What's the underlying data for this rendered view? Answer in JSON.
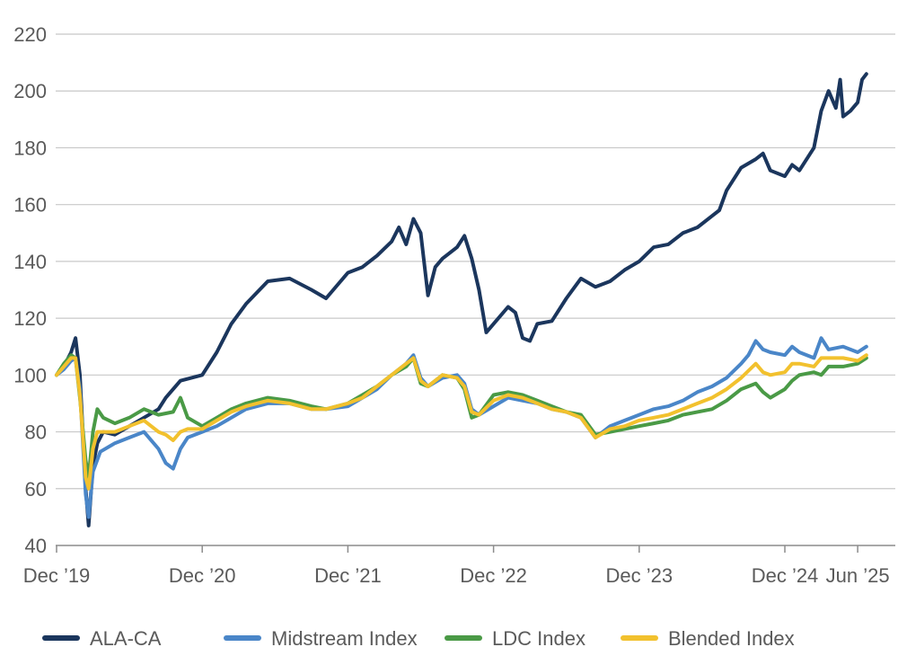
{
  "chart_data": {
    "type": "line",
    "title": "",
    "xlabel": "",
    "ylabel": "",
    "ylim": [
      40,
      220
    ],
    "yticks": [
      40,
      60,
      80,
      100,
      120,
      140,
      160,
      180,
      200,
      220
    ],
    "xticks": [
      {
        "t": 0.0,
        "label": "Dec ’19"
      },
      {
        "t": 1.0,
        "label": "Dec ’20"
      },
      {
        "t": 2.0,
        "label": "Dec ’21"
      },
      {
        "t": 3.0,
        "label": "Dec ’22"
      },
      {
        "t": 4.0,
        "label": "Dec ’23"
      },
      {
        "t": 5.0,
        "label": "Dec ’24"
      },
      {
        "t": 5.5,
        "label": "Jun ’25"
      }
    ],
    "x_unit": "years since Dec 2019",
    "series": [
      {
        "name": "ALA-CA",
        "color": "#1b365d",
        "points": [
          [
            0.0,
            100
          ],
          [
            0.05,
            103
          ],
          [
            0.1,
            108
          ],
          [
            0.13,
            113
          ],
          [
            0.16,
            100
          ],
          [
            0.2,
            60
          ],
          [
            0.22,
            47
          ],
          [
            0.25,
            68
          ],
          [
            0.28,
            76
          ],
          [
            0.32,
            80
          ],
          [
            0.4,
            79
          ],
          [
            0.5,
            82
          ],
          [
            0.6,
            85
          ],
          [
            0.7,
            88
          ],
          [
            0.75,
            92
          ],
          [
            0.8,
            95
          ],
          [
            0.85,
            98
          ],
          [
            1.0,
            100
          ],
          [
            1.1,
            108
          ],
          [
            1.2,
            118
          ],
          [
            1.3,
            125
          ],
          [
            1.45,
            133
          ],
          [
            1.6,
            134
          ],
          [
            1.75,
            130
          ],
          [
            1.85,
            127
          ],
          [
            2.0,
            136
          ],
          [
            2.1,
            138
          ],
          [
            2.2,
            142
          ],
          [
            2.3,
            147
          ],
          [
            2.35,
            152
          ],
          [
            2.4,
            146
          ],
          [
            2.45,
            155
          ],
          [
            2.5,
            150
          ],
          [
            2.55,
            128
          ],
          [
            2.6,
            138
          ],
          [
            2.65,
            141
          ],
          [
            2.75,
            145
          ],
          [
            2.8,
            149
          ],
          [
            2.85,
            141
          ],
          [
            2.9,
            130
          ],
          [
            2.95,
            115
          ],
          [
            3.0,
            118
          ],
          [
            3.1,
            124
          ],
          [
            3.15,
            122
          ],
          [
            3.2,
            113
          ],
          [
            3.25,
            112
          ],
          [
            3.3,
            118
          ],
          [
            3.4,
            119
          ],
          [
            3.5,
            127
          ],
          [
            3.6,
            134
          ],
          [
            3.7,
            131
          ],
          [
            3.8,
            133
          ],
          [
            3.9,
            137
          ],
          [
            4.0,
            140
          ],
          [
            4.1,
            145
          ],
          [
            4.2,
            146
          ],
          [
            4.3,
            150
          ],
          [
            4.4,
            152
          ],
          [
            4.5,
            156
          ],
          [
            4.55,
            158
          ],
          [
            4.6,
            165
          ],
          [
            4.7,
            173
          ],
          [
            4.8,
            176
          ],
          [
            4.85,
            178
          ],
          [
            4.9,
            172
          ],
          [
            5.0,
            170
          ],
          [
            5.05,
            174
          ],
          [
            5.1,
            172
          ],
          [
            5.2,
            180
          ],
          [
            5.25,
            193
          ],
          [
            5.3,
            200
          ],
          [
            5.35,
            194
          ],
          [
            5.38,
            204
          ],
          [
            5.4,
            191
          ],
          [
            5.45,
            193
          ],
          [
            5.5,
            196
          ],
          [
            5.53,
            204
          ],
          [
            5.56,
            206
          ]
        ]
      },
      {
        "name": "Midstream Index",
        "color": "#4a86c8",
        "points": [
          [
            0.0,
            100
          ],
          [
            0.05,
            102
          ],
          [
            0.1,
            105
          ],
          [
            0.13,
            106
          ],
          [
            0.16,
            95
          ],
          [
            0.2,
            58
          ],
          [
            0.22,
            50
          ],
          [
            0.25,
            66
          ],
          [
            0.3,
            73
          ],
          [
            0.4,
            76
          ],
          [
            0.5,
            78
          ],
          [
            0.6,
            80
          ],
          [
            0.7,
            74
          ],
          [
            0.75,
            69
          ],
          [
            0.8,
            67
          ],
          [
            0.85,
            74
          ],
          [
            0.9,
            78
          ],
          [
            1.0,
            80
          ],
          [
            1.1,
            82
          ],
          [
            1.2,
            85
          ],
          [
            1.3,
            88
          ],
          [
            1.45,
            90
          ],
          [
            1.6,
            90
          ],
          [
            1.75,
            88
          ],
          [
            1.85,
            88
          ],
          [
            2.0,
            89
          ],
          [
            2.1,
            92
          ],
          [
            2.2,
            95
          ],
          [
            2.3,
            100
          ],
          [
            2.4,
            104
          ],
          [
            2.45,
            107
          ],
          [
            2.5,
            99
          ],
          [
            2.55,
            96
          ],
          [
            2.65,
            99
          ],
          [
            2.75,
            100
          ],
          [
            2.8,
            97
          ],
          [
            2.85,
            88
          ],
          [
            2.9,
            86
          ],
          [
            3.0,
            89
          ],
          [
            3.1,
            92
          ],
          [
            3.2,
            91
          ],
          [
            3.3,
            90
          ],
          [
            3.4,
            88
          ],
          [
            3.5,
            87
          ],
          [
            3.6,
            85
          ],
          [
            3.7,
            78
          ],
          [
            3.8,
            82
          ],
          [
            3.9,
            84
          ],
          [
            4.0,
            86
          ],
          [
            4.1,
            88
          ],
          [
            4.2,
            89
          ],
          [
            4.3,
            91
          ],
          [
            4.4,
            94
          ],
          [
            4.5,
            96
          ],
          [
            4.6,
            99
          ],
          [
            4.7,
            104
          ],
          [
            4.75,
            107
          ],
          [
            4.8,
            112
          ],
          [
            4.85,
            109
          ],
          [
            4.9,
            108
          ],
          [
            5.0,
            107
          ],
          [
            5.05,
            110
          ],
          [
            5.1,
            108
          ],
          [
            5.2,
            106
          ],
          [
            5.25,
            113
          ],
          [
            5.3,
            109
          ],
          [
            5.4,
            110
          ],
          [
            5.5,
            108
          ],
          [
            5.56,
            110
          ]
        ]
      },
      {
        "name": "LDC Index",
        "color": "#4a9a46",
        "points": [
          [
            0.0,
            100
          ],
          [
            0.05,
            104
          ],
          [
            0.1,
            107
          ],
          [
            0.13,
            106
          ],
          [
            0.16,
            92
          ],
          [
            0.2,
            70
          ],
          [
            0.22,
            64
          ],
          [
            0.25,
            80
          ],
          [
            0.28,
            88
          ],
          [
            0.32,
            85
          ],
          [
            0.4,
            83
          ],
          [
            0.5,
            85
          ],
          [
            0.6,
            88
          ],
          [
            0.7,
            86
          ],
          [
            0.8,
            87
          ],
          [
            0.85,
            92
          ],
          [
            0.9,
            85
          ],
          [
            1.0,
            82
          ],
          [
            1.1,
            85
          ],
          [
            1.2,
            88
          ],
          [
            1.3,
            90
          ],
          [
            1.45,
            92
          ],
          [
            1.6,
            91
          ],
          [
            1.75,
            89
          ],
          [
            1.85,
            88
          ],
          [
            2.0,
            90
          ],
          [
            2.1,
            93
          ],
          [
            2.2,
            96
          ],
          [
            2.3,
            100
          ],
          [
            2.4,
            103
          ],
          [
            2.45,
            106
          ],
          [
            2.5,
            97
          ],
          [
            2.55,
            96
          ],
          [
            2.65,
            100
          ],
          [
            2.75,
            99
          ],
          [
            2.8,
            95
          ],
          [
            2.85,
            85
          ],
          [
            2.9,
            86
          ],
          [
            3.0,
            93
          ],
          [
            3.1,
            94
          ],
          [
            3.2,
            93
          ],
          [
            3.3,
            91
          ],
          [
            3.4,
            89
          ],
          [
            3.5,
            87
          ],
          [
            3.6,
            86
          ],
          [
            3.7,
            79
          ],
          [
            3.8,
            80
          ],
          [
            3.9,
            81
          ],
          [
            4.0,
            82
          ],
          [
            4.1,
            83
          ],
          [
            4.2,
            84
          ],
          [
            4.3,
            86
          ],
          [
            4.4,
            87
          ],
          [
            4.5,
            88
          ],
          [
            4.6,
            91
          ],
          [
            4.7,
            95
          ],
          [
            4.8,
            97
          ],
          [
            4.85,
            94
          ],
          [
            4.9,
            92
          ],
          [
            5.0,
            95
          ],
          [
            5.05,
            98
          ],
          [
            5.1,
            100
          ],
          [
            5.2,
            101
          ],
          [
            5.25,
            100
          ],
          [
            5.3,
            103
          ],
          [
            5.4,
            103
          ],
          [
            5.5,
            104
          ],
          [
            5.56,
            106
          ]
        ]
      },
      {
        "name": "Blended Index",
        "color": "#f2c12e",
        "points": [
          [
            0.0,
            100
          ],
          [
            0.05,
            103
          ],
          [
            0.1,
            106
          ],
          [
            0.13,
            106
          ],
          [
            0.16,
            93
          ],
          [
            0.2,
            64
          ],
          [
            0.22,
            60
          ],
          [
            0.25,
            74
          ],
          [
            0.28,
            80
          ],
          [
            0.32,
            80
          ],
          [
            0.4,
            80
          ],
          [
            0.5,
            82
          ],
          [
            0.6,
            84
          ],
          [
            0.7,
            80
          ],
          [
            0.75,
            79
          ],
          [
            0.8,
            77
          ],
          [
            0.85,
            80
          ],
          [
            0.9,
            81
          ],
          [
            1.0,
            81
          ],
          [
            1.1,
            84
          ],
          [
            1.2,
            87
          ],
          [
            1.3,
            89
          ],
          [
            1.45,
            91
          ],
          [
            1.6,
            90
          ],
          [
            1.75,
            88
          ],
          [
            1.85,
            88
          ],
          [
            2.0,
            90
          ],
          [
            2.1,
            92
          ],
          [
            2.2,
            96
          ],
          [
            2.3,
            100
          ],
          [
            2.4,
            104
          ],
          [
            2.45,
            106
          ],
          [
            2.5,
            98
          ],
          [
            2.55,
            96
          ],
          [
            2.65,
            100
          ],
          [
            2.75,
            99
          ],
          [
            2.8,
            96
          ],
          [
            2.85,
            87
          ],
          [
            2.9,
            86
          ],
          [
            3.0,
            91
          ],
          [
            3.1,
            93
          ],
          [
            3.2,
            92
          ],
          [
            3.3,
            90
          ],
          [
            3.4,
            88
          ],
          [
            3.5,
            87
          ],
          [
            3.6,
            85
          ],
          [
            3.7,
            78
          ],
          [
            3.8,
            81
          ],
          [
            3.9,
            82
          ],
          [
            4.0,
            84
          ],
          [
            4.1,
            85
          ],
          [
            4.2,
            86
          ],
          [
            4.3,
            88
          ],
          [
            4.4,
            90
          ],
          [
            4.5,
            92
          ],
          [
            4.6,
            95
          ],
          [
            4.7,
            99
          ],
          [
            4.8,
            104
          ],
          [
            4.85,
            101
          ],
          [
            4.9,
            100
          ],
          [
            5.0,
            101
          ],
          [
            5.05,
            104
          ],
          [
            5.1,
            104
          ],
          [
            5.2,
            103
          ],
          [
            5.25,
            106
          ],
          [
            5.3,
            106
          ],
          [
            5.4,
            106
          ],
          [
            5.5,
            105
          ],
          [
            5.56,
            107
          ]
        ]
      }
    ],
    "legend": {
      "position": "bottom",
      "entries": [
        "ALA-CA",
        "Midstream Index",
        "LDC Index",
        "Blended Index"
      ]
    }
  }
}
